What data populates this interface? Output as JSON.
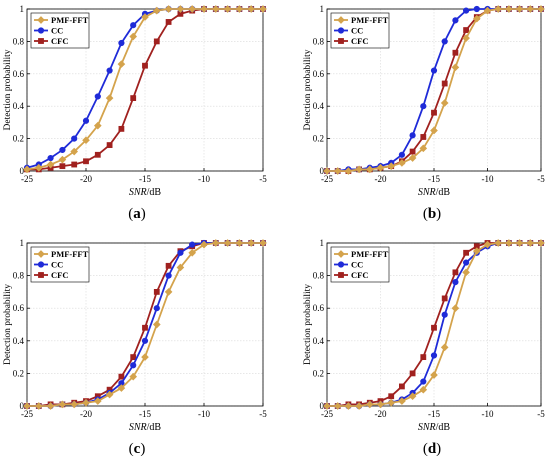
{
  "figure": {
    "panel_labels": [
      "(a)",
      "(b)",
      "(c)",
      "(d)"
    ],
    "colors": {
      "PMF-FFT": "#D4A34C",
      "CC": "#1F2BD8",
      "CFC": "#A0211F",
      "grid": "#d9d9d9",
      "axis": "#000000"
    }
  },
  "chart_data": [
    {
      "type": "line",
      "xlabel": "SNR/dB",
      "ylabel": "Detection probability",
      "xlim": [
        -25,
        -5
      ],
      "ylim": [
        0,
        1
      ],
      "xticks": [
        -25,
        -20,
        -15,
        -10,
        -5
      ],
      "yticks": [
        0,
        0.2,
        0.4,
        0.6,
        0.8,
        1
      ],
      "ytick_labels": [
        "0",
        "0.2",
        "0.4",
        "0.6",
        "0.8",
        "1"
      ],
      "grid": true,
      "legend_position": "top-left",
      "x": [
        -25,
        -24,
        -23,
        -22,
        -21,
        -20,
        -19,
        -18,
        -17,
        -16,
        -15,
        -14,
        -13,
        -12,
        -11,
        -10,
        -9,
        -8,
        -7,
        -6,
        -5
      ],
      "series": [
        {
          "name": "PMF-FFT",
          "marker": "diamond",
          "values": [
            0.01,
            0.02,
            0.04,
            0.07,
            0.12,
            0.19,
            0.28,
            0.45,
            0.66,
            0.83,
            0.95,
            0.99,
            1,
            1,
            1,
            1,
            1,
            1,
            1,
            1,
            1
          ]
        },
        {
          "name": "CC",
          "marker": "circle",
          "values": [
            0.02,
            0.04,
            0.08,
            0.13,
            0.2,
            0.31,
            0.46,
            0.62,
            0.79,
            0.9,
            0.97,
            0.99,
            1,
            1,
            1,
            1,
            1,
            1,
            1,
            1,
            1
          ]
        },
        {
          "name": "CFC",
          "marker": "square",
          "values": [
            0.01,
            0.01,
            0.02,
            0.03,
            0.04,
            0.06,
            0.1,
            0.16,
            0.26,
            0.45,
            0.65,
            0.8,
            0.92,
            0.97,
            0.99,
            1,
            1,
            1,
            1,
            1,
            1
          ]
        }
      ]
    },
    {
      "type": "line",
      "xlabel": "SNR/dB",
      "ylabel": "Detection probability",
      "xlim": [
        -25,
        -5
      ],
      "ylim": [
        0,
        1
      ],
      "xticks": [
        -25,
        -20,
        -15,
        -10,
        -5
      ],
      "yticks": [
        0,
        0.2,
        0.4,
        0.6,
        0.8,
        1
      ],
      "ytick_labels": [
        "0",
        "0.2",
        "0.4",
        "0.6",
        "0.8",
        "1"
      ],
      "grid": true,
      "legend_position": "top-left",
      "x": [
        -25,
        -24,
        -23,
        -22,
        -21,
        -20,
        -19,
        -18,
        -17,
        -16,
        -15,
        -14,
        -13,
        -12,
        -11,
        -10,
        -9,
        -8,
        -7,
        -6,
        -5
      ],
      "series": [
        {
          "name": "PMF-FFT",
          "marker": "diamond",
          "values": [
            0,
            0,
            0,
            0.01,
            0.01,
            0.02,
            0.03,
            0.05,
            0.08,
            0.14,
            0.25,
            0.42,
            0.64,
            0.82,
            0.94,
            0.99,
            1,
            1,
            1,
            1,
            1
          ]
        },
        {
          "name": "CC",
          "marker": "circle",
          "values": [
            0,
            0,
            0.01,
            0.01,
            0.02,
            0.03,
            0.05,
            0.1,
            0.22,
            0.4,
            0.62,
            0.8,
            0.93,
            0.99,
            1,
            1,
            1,
            1,
            1,
            1,
            1
          ]
        },
        {
          "name": "CFC",
          "marker": "square",
          "values": [
            0,
            0,
            0,
            0.01,
            0.01,
            0.02,
            0.03,
            0.06,
            0.12,
            0.21,
            0.36,
            0.54,
            0.73,
            0.87,
            0.95,
            0.99,
            1,
            1,
            1,
            1,
            1
          ]
        }
      ]
    },
    {
      "type": "line",
      "xlabel": "SNR/dB",
      "ylabel": "Detection probability",
      "xlim": [
        -25,
        -5
      ],
      "ylim": [
        0,
        1
      ],
      "xticks": [
        -25,
        -20,
        -15,
        -10,
        -5
      ],
      "yticks": [
        0,
        0.2,
        0.4,
        0.6,
        0.8,
        1
      ],
      "ytick_labels": [
        "0",
        "0.2",
        "0.4",
        "0.6",
        "0.8",
        "1"
      ],
      "grid": true,
      "legend_position": "top-left",
      "x": [
        -25,
        -24,
        -23,
        -22,
        -21,
        -20,
        -19,
        -18,
        -17,
        -16,
        -15,
        -14,
        -13,
        -12,
        -11,
        -10,
        -9,
        -8,
        -7,
        -6,
        -5
      ],
      "series": [
        {
          "name": "PMF-FFT",
          "marker": "diamond",
          "values": [
            0,
            0,
            0,
            0.01,
            0.01,
            0.02,
            0.03,
            0.07,
            0.11,
            0.18,
            0.3,
            0.5,
            0.7,
            0.85,
            0.94,
            0.99,
            1,
            1,
            1,
            1,
            1
          ]
        },
        {
          "name": "CC",
          "marker": "circle",
          "values": [
            0,
            0,
            0,
            0.01,
            0.01,
            0.02,
            0.04,
            0.08,
            0.14,
            0.25,
            0.4,
            0.6,
            0.8,
            0.94,
            0.99,
            1,
            1,
            1,
            1,
            1,
            1
          ]
        },
        {
          "name": "CFC",
          "marker": "square",
          "values": [
            0,
            0,
            0.01,
            0.01,
            0.02,
            0.03,
            0.06,
            0.1,
            0.18,
            0.3,
            0.48,
            0.7,
            0.86,
            0.95,
            0.98,
            1,
            1,
            1,
            1,
            1,
            1
          ]
        }
      ]
    },
    {
      "type": "line",
      "xlabel": "SNR/dB",
      "ylabel": "Detection probability",
      "xlim": [
        -25,
        -5
      ],
      "ylim": [
        0,
        1
      ],
      "xticks": [
        -25,
        -20,
        -15,
        -10,
        -5
      ],
      "yticks": [
        0,
        0.2,
        0.4,
        0.6,
        0.8,
        1
      ],
      "ytick_labels": [
        "0",
        "0.2",
        "0.4",
        "0.6",
        "0.8",
        "1"
      ],
      "grid": true,
      "legend_position": "top-left",
      "x": [
        -25,
        -24,
        -23,
        -22,
        -21,
        -20,
        -19,
        -18,
        -17,
        -16,
        -15,
        -14,
        -13,
        -12,
        -11,
        -10,
        -9,
        -8,
        -7,
        -6,
        -5
      ],
      "series": [
        {
          "name": "PMF-FFT",
          "marker": "diamond",
          "values": [
            0,
            0,
            0,
            0,
            0.01,
            0.01,
            0.02,
            0.03,
            0.06,
            0.1,
            0.19,
            0.36,
            0.6,
            0.82,
            0.95,
            0.99,
            1,
            1,
            1,
            1,
            1
          ]
        },
        {
          "name": "CC",
          "marker": "circle",
          "values": [
            0,
            0,
            0,
            0,
            0.01,
            0.01,
            0.02,
            0.04,
            0.08,
            0.15,
            0.31,
            0.56,
            0.76,
            0.88,
            0.94,
            0.98,
            1,
            1,
            1,
            1,
            1
          ]
        },
        {
          "name": "CFC",
          "marker": "square",
          "values": [
            0,
            0,
            0.01,
            0.01,
            0.02,
            0.03,
            0.06,
            0.12,
            0.2,
            0.3,
            0.48,
            0.66,
            0.82,
            0.94,
            0.98,
            1,
            1,
            1,
            1,
            1,
            1
          ]
        }
      ]
    }
  ]
}
